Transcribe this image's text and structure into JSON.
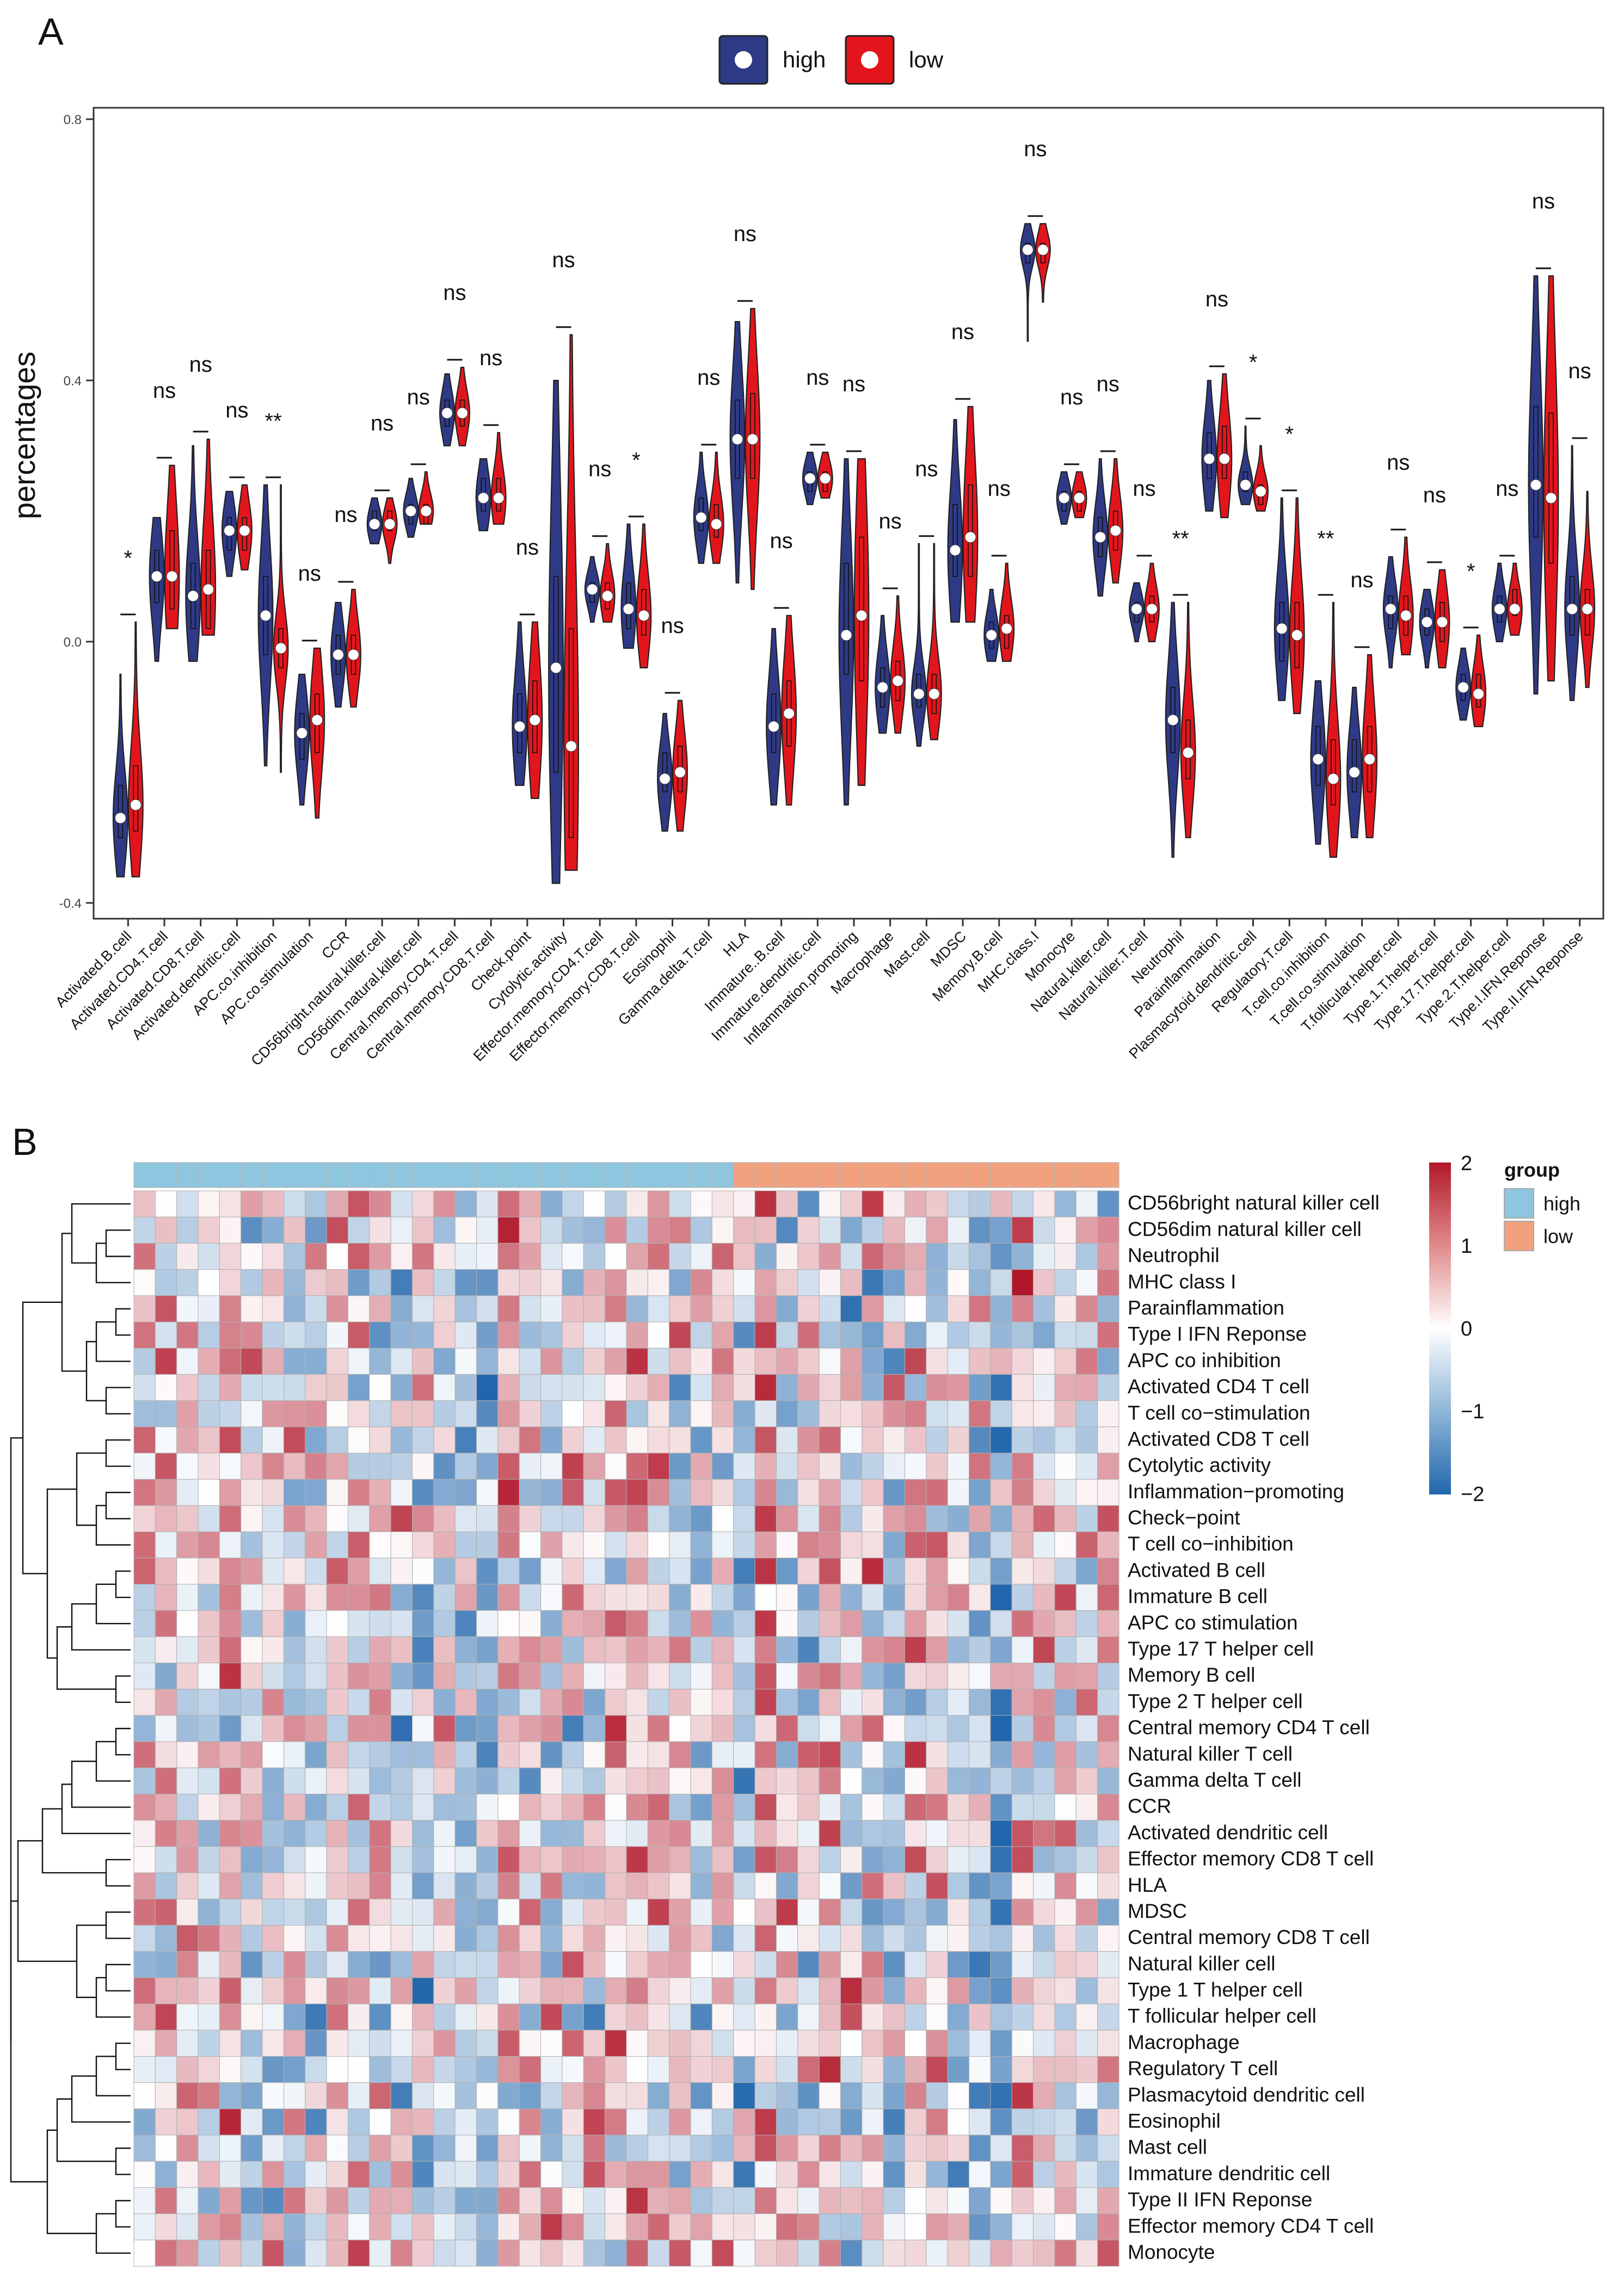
{
  "panel_a": {
    "label": "A",
    "legend": [
      {
        "name": "high",
        "color": "#2f3a86"
      },
      {
        "name": "low",
        "color": "#e3151c"
      }
    ],
    "ylabel": "percentages",
    "ylim": [
      -0.42,
      0.84
    ],
    "yticks": [
      -0.4,
      0.0,
      0.4,
      0.8
    ],
    "ytick_labels": [
      "-0.4",
      "0.0",
      "0.4",
      "0.8"
    ]
  },
  "panel_b": {
    "label": "B",
    "color_scale": {
      "min": -2,
      "max": 2,
      "labels": [
        "2",
        "1",
        "0",
        "−1",
        "−2"
      ]
    },
    "legend_title": "group",
    "groups": [
      {
        "name": "high",
        "color": "#8ec6df",
        "columns": 28
      },
      {
        "name": "low",
        "color": "#f2a17e",
        "columns": 18
      }
    ],
    "rows": [
      "CD56bright natural killer cell",
      "CD56dim natural killer cell",
      "Neutrophil",
      "MHC class I",
      "Parainflammation",
      "Type I IFN Reponse",
      "APC co inhibition",
      "Activated CD4 T cell",
      "T cell co−stimulation",
      "Activated CD8 T cell",
      "Cytolytic activity",
      "Inflammation−promoting",
      "Check−point",
      "T cell co−inhibition",
      "Activated B cell",
      "Immature  B cell",
      "APC co stimulation",
      "Type 17 T helper cell",
      "Memory B cell",
      "Type 2 T helper cell",
      "Central memory CD4 T cell",
      "Natural killer T cell",
      "Gamma delta T cell",
      "CCR",
      "Activated dendritic cell",
      "Effector memory CD8 T cell",
      "HLA",
      "MDSC",
      "Central memory CD8 T cell",
      "Natural killer cell",
      "Type 1 T helper cell",
      "T follicular helper cell",
      "Macrophage",
      "Regulatory T cell",
      "Plasmacytoid dendritic cell",
      "Eosinophil",
      "Mast cell",
      "Immature dendritic cell",
      "Type II IFN Reponse",
      "Effector memory CD4 T cell",
      "Monocyte"
    ]
  },
  "chart_data": [
    {
      "type": "violin",
      "title": "",
      "xlabel": "",
      "ylabel": "percentages",
      "ylim": [
        -0.42,
        0.84
      ],
      "series": [
        "high",
        "low"
      ],
      "categories": [
        {
          "name": "Activated.B.cell",
          "sig": "*",
          "high": {
            "median": -0.27,
            "min": -0.36,
            "max": -0.05,
            "q1": -0.3,
            "q3": -0.22
          },
          "low": {
            "median": -0.25,
            "min": -0.36,
            "max": 0.03,
            "q1": -0.29,
            "q3": -0.19
          }
        },
        {
          "name": "Activated.CD4.T.cell",
          "sig": "ns",
          "high": {
            "median": 0.1,
            "min": -0.03,
            "max": 0.19,
            "q1": 0.06,
            "q3": 0.14
          },
          "low": {
            "median": 0.1,
            "min": 0.02,
            "max": 0.27,
            "q1": 0.05,
            "q3": 0.17
          }
        },
        {
          "name": "Activated.CD8.T.cell",
          "sig": "ns",
          "high": {
            "median": 0.07,
            "min": -0.03,
            "max": 0.3,
            "q1": 0.02,
            "q3": 0.12
          },
          "low": {
            "median": 0.08,
            "min": 0.01,
            "max": 0.31,
            "q1": 0.02,
            "q3": 0.14
          }
        },
        {
          "name": "Activated.dendritic.cell",
          "sig": "ns",
          "high": {
            "median": 0.17,
            "min": 0.1,
            "max": 0.23,
            "q1": 0.14,
            "q3": 0.19
          },
          "low": {
            "median": 0.17,
            "min": 0.11,
            "max": 0.24,
            "q1": 0.14,
            "q3": 0.19
          }
        },
        {
          "name": "APC.co.inhibition",
          "sig": "**",
          "high": {
            "median": 0.04,
            "min": -0.19,
            "max": 0.24,
            "q1": -0.02,
            "q3": 0.1
          },
          "low": {
            "median": -0.01,
            "min": -0.2,
            "max": 0.24,
            "q1": -0.04,
            "q3": 0.02
          }
        },
        {
          "name": "APC.co.stimulation",
          "sig": "ns",
          "high": {
            "median": -0.14,
            "min": -0.25,
            "max": -0.05,
            "q1": -0.18,
            "q3": -0.11
          },
          "low": {
            "median": -0.12,
            "min": -0.27,
            "max": -0.01,
            "q1": -0.17,
            "q3": -0.08
          }
        },
        {
          "name": "CCR",
          "sig": "ns",
          "high": {
            "median": -0.02,
            "min": -0.1,
            "max": 0.06,
            "q1": -0.05,
            "q3": 0.01
          },
          "low": {
            "median": -0.02,
            "min": -0.1,
            "max": 0.08,
            "q1": -0.05,
            "q3": 0.01
          }
        },
        {
          "name": "CD56bright.natural.killer.cell",
          "sig": "ns",
          "high": {
            "median": 0.18,
            "min": 0.15,
            "max": 0.22,
            "q1": 0.17,
            "q3": 0.2
          },
          "low": {
            "median": 0.18,
            "min": 0.12,
            "max": 0.22,
            "q1": 0.17,
            "q3": 0.2
          }
        },
        {
          "name": "CD56dim.natural.killer.cell",
          "sig": "ns",
          "high": {
            "median": 0.2,
            "min": 0.16,
            "max": 0.25,
            "q1": 0.18,
            "q3": 0.21
          },
          "low": {
            "median": 0.2,
            "min": 0.18,
            "max": 0.26,
            "q1": 0.18,
            "q3": 0.21
          }
        },
        {
          "name": "Central.memory.CD4.T.cell",
          "sig": "ns",
          "high": {
            "median": 0.35,
            "min": 0.3,
            "max": 0.41,
            "q1": 0.33,
            "q3": 0.37
          },
          "low": {
            "median": 0.35,
            "min": 0.3,
            "max": 0.42,
            "q1": 0.33,
            "q3": 0.37
          }
        },
        {
          "name": "Central.memory.CD8.T.cell",
          "sig": "ns",
          "high": {
            "median": 0.22,
            "min": 0.17,
            "max": 0.28,
            "q1": 0.2,
            "q3": 0.25
          },
          "low": {
            "median": 0.22,
            "min": 0.18,
            "max": 0.32,
            "q1": 0.2,
            "q3": 0.25
          }
        },
        {
          "name": "Check.point",
          "sig": "ns",
          "high": {
            "median": -0.13,
            "min": -0.22,
            "max": 0.03,
            "q1": -0.17,
            "q3": -0.08
          },
          "low": {
            "median": -0.12,
            "min": -0.24,
            "max": 0.03,
            "q1": -0.17,
            "q3": -0.06
          }
        },
        {
          "name": "Cytolytic.activity",
          "sig": "ns",
          "high": {
            "median": -0.04,
            "min": -0.37,
            "max": 0.4,
            "q1": -0.2,
            "q3": 0.1
          },
          "low": {
            "median": -0.16,
            "min": -0.35,
            "max": 0.47,
            "q1": -0.3,
            "q3": 0.02
          }
        },
        {
          "name": "Effector.memory.CD4.T.cell",
          "sig": "ns",
          "high": {
            "median": 0.08,
            "min": 0.03,
            "max": 0.13,
            "q1": 0.06,
            "q3": 0.09
          },
          "low": {
            "median": 0.07,
            "min": 0.03,
            "max": 0.15,
            "q1": 0.05,
            "q3": 0.09
          }
        },
        {
          "name": "Effector.memory.CD8.T.cell",
          "sig": "*",
          "high": {
            "median": 0.05,
            "min": -0.01,
            "max": 0.18,
            "q1": 0.02,
            "q3": 0.09
          },
          "low": {
            "median": 0.04,
            "min": -0.04,
            "max": 0.18,
            "q1": 0.01,
            "q3": 0.08
          }
        },
        {
          "name": "Eosinophil",
          "sig": "ns",
          "high": {
            "median": -0.21,
            "min": -0.29,
            "max": -0.11,
            "q1": -0.23,
            "q3": -0.17
          },
          "low": {
            "median": -0.2,
            "min": -0.29,
            "max": -0.09,
            "q1": -0.23,
            "q3": -0.16
          }
        },
        {
          "name": "Gamma.delta.T.cell",
          "sig": "ns",
          "high": {
            "median": 0.19,
            "min": 0.12,
            "max": 0.29,
            "q1": 0.17,
            "q3": 0.22
          },
          "low": {
            "median": 0.18,
            "min": 0.12,
            "max": 0.29,
            "q1": 0.16,
            "q3": 0.21
          }
        },
        {
          "name": "HLA",
          "sig": "ns",
          "high": {
            "median": 0.31,
            "min": 0.09,
            "max": 0.49,
            "q1": 0.25,
            "q3": 0.37
          },
          "low": {
            "median": 0.31,
            "min": 0.08,
            "max": 0.51,
            "q1": 0.25,
            "q3": 0.38
          }
        },
        {
          "name": "Immature..B.cell",
          "sig": "ns",
          "high": {
            "median": -0.13,
            "min": -0.25,
            "max": 0.02,
            "q1": -0.17,
            "q3": -0.08
          },
          "low": {
            "median": -0.11,
            "min": -0.25,
            "max": 0.04,
            "q1": -0.16,
            "q3": -0.06
          }
        },
        {
          "name": "Immature.dendritic.cell",
          "sig": "ns",
          "high": {
            "median": 0.25,
            "min": 0.21,
            "max": 0.29,
            "q1": 0.23,
            "q3": 0.26
          },
          "low": {
            "median": 0.25,
            "min": 0.22,
            "max": 0.29,
            "q1": 0.23,
            "q3": 0.26
          }
        },
        {
          "name": "Inflammation.promoting",
          "sig": "ns",
          "high": {
            "median": 0.01,
            "min": -0.25,
            "max": 0.28,
            "q1": -0.05,
            "q3": 0.12
          },
          "low": {
            "median": 0.04,
            "min": -0.22,
            "max": 0.28,
            "q1": -0.06,
            "q3": 0.16
          }
        },
        {
          "name": "Macrophage",
          "sig": "ns",
          "high": {
            "median": -0.07,
            "min": -0.14,
            "max": 0.04,
            "q1": -0.1,
            "q3": -0.04
          },
          "low": {
            "median": -0.06,
            "min": -0.14,
            "max": 0.07,
            "q1": -0.09,
            "q3": -0.03
          }
        },
        {
          "name": "Mast.cell",
          "sig": "ns",
          "high": {
            "median": -0.08,
            "min": -0.16,
            "max": 0.15,
            "q1": -0.1,
            "q3": -0.05
          },
          "low": {
            "median": -0.08,
            "min": -0.15,
            "max": 0.15,
            "q1": -0.11,
            "q3": -0.05
          }
        },
        {
          "name": "MDSC",
          "sig": "ns",
          "high": {
            "median": 0.14,
            "min": 0.03,
            "max": 0.34,
            "q1": 0.1,
            "q3": 0.21
          },
          "low": {
            "median": 0.16,
            "min": 0.03,
            "max": 0.36,
            "q1": 0.1,
            "q3": 0.24
          }
        },
        {
          "name": "Memory.B.cell",
          "sig": "ns",
          "high": {
            "median": 0.01,
            "min": -0.03,
            "max": 0.08,
            "q1": -0.01,
            "q3": 0.03
          },
          "low": {
            "median": 0.02,
            "min": -0.03,
            "max": 0.12,
            "q1": -0.01,
            "q3": 0.04
          }
        },
        {
          "name": "MHC.class.I",
          "sig": "ns",
          "high": {
            "median": 0.6,
            "min": 0.46,
            "max": 0.64,
            "q1": 0.58,
            "q3": 0.61
          },
          "low": {
            "median": 0.6,
            "min": 0.52,
            "max": 0.64,
            "q1": 0.58,
            "q3": 0.61
          }
        },
        {
          "name": "Monocyte",
          "sig": "ns",
          "high": {
            "median": 0.22,
            "min": 0.18,
            "max": 0.26,
            "q1": 0.2,
            "q3": 0.23
          },
          "low": {
            "median": 0.22,
            "min": 0.19,
            "max": 0.26,
            "q1": 0.2,
            "q3": 0.23
          }
        },
        {
          "name": "Natural.killer.cell",
          "sig": "ns",
          "high": {
            "median": 0.16,
            "min": 0.07,
            "max": 0.28,
            "q1": 0.13,
            "q3": 0.19
          },
          "low": {
            "median": 0.17,
            "min": 0.09,
            "max": 0.28,
            "q1": 0.14,
            "q3": 0.2
          }
        },
        {
          "name": "Natural.killer.T.cell",
          "sig": "ns",
          "high": {
            "median": 0.05,
            "min": 0.0,
            "max": 0.09,
            "q1": 0.03,
            "q3": 0.06
          },
          "low": {
            "median": 0.05,
            "min": 0.0,
            "max": 0.12,
            "q1": 0.03,
            "q3": 0.07
          }
        },
        {
          "name": "Neutrophil",
          "sig": "**",
          "high": {
            "median": -0.12,
            "min": -0.33,
            "max": 0.06,
            "q1": -0.17,
            "q3": -0.07
          },
          "low": {
            "median": -0.17,
            "min": -0.3,
            "max": 0.06,
            "q1": -0.21,
            "q3": -0.12
          }
        },
        {
          "name": "Parainflammation",
          "sig": "ns",
          "high": {
            "median": 0.28,
            "min": 0.2,
            "max": 0.4,
            "q1": 0.25,
            "q3": 0.32
          },
          "low": {
            "median": 0.28,
            "min": 0.19,
            "max": 0.41,
            "q1": 0.25,
            "q3": 0.33
          }
        },
        {
          "name": "Plasmacytoid.dendritic.cell",
          "sig": "*",
          "high": {
            "median": 0.24,
            "min": 0.21,
            "max": 0.33,
            "q1": 0.23,
            "q3": 0.26
          },
          "low": {
            "median": 0.23,
            "min": 0.2,
            "max": 0.3,
            "q1": 0.21,
            "q3": 0.24
          }
        },
        {
          "name": "Regulatory.T.cell",
          "sig": "*",
          "high": {
            "median": 0.02,
            "min": -0.09,
            "max": 0.22,
            "q1": -0.03,
            "q3": 0.06
          },
          "low": {
            "median": 0.01,
            "min": -0.11,
            "max": 0.22,
            "q1": -0.04,
            "q3": 0.06
          }
        },
        {
          "name": "T.cell.co.inhibition",
          "sig": "**",
          "high": {
            "median": -0.18,
            "min": -0.31,
            "max": -0.06,
            "q1": -0.22,
            "q3": -0.13
          },
          "low": {
            "median": -0.21,
            "min": -0.33,
            "max": 0.06,
            "q1": -0.25,
            "q3": -0.15
          }
        },
        {
          "name": "T.cell.co.stimulation",
          "sig": "ns",
          "high": {
            "median": -0.2,
            "min": -0.3,
            "max": -0.07,
            "q1": -0.23,
            "q3": -0.15
          },
          "low": {
            "median": -0.18,
            "min": -0.3,
            "max": -0.02,
            "q1": -0.23,
            "q3": -0.13
          }
        },
        {
          "name": "T.follicular.helper.cell",
          "sig": "ns",
          "high": {
            "median": 0.05,
            "min": -0.04,
            "max": 0.13,
            "q1": 0.02,
            "q3": 0.07
          },
          "low": {
            "median": 0.04,
            "min": -0.02,
            "max": 0.16,
            "q1": 0.01,
            "q3": 0.07
          }
        },
        {
          "name": "Type.1.T.helper.cell",
          "sig": "ns",
          "high": {
            "median": 0.03,
            "min": -0.04,
            "max": 0.08,
            "q1": 0.01,
            "q3": 0.05
          },
          "low": {
            "median": 0.03,
            "min": -0.04,
            "max": 0.11,
            "q1": 0.0,
            "q3": 0.06
          }
        },
        {
          "name": "Type.17.T.helper.cell",
          "sig": "*",
          "high": {
            "median": -0.07,
            "min": -0.12,
            "max": -0.01,
            "q1": -0.09,
            "q3": -0.05
          },
          "low": {
            "median": -0.08,
            "min": -0.13,
            "max": 0.01,
            "q1": -0.1,
            "q3": -0.05
          }
        },
        {
          "name": "Type.2.T.helper.cell",
          "sig": "ns",
          "high": {
            "median": 0.05,
            "min": 0.0,
            "max": 0.12,
            "q1": 0.03,
            "q3": 0.07
          },
          "low": {
            "median": 0.05,
            "min": 0.01,
            "max": 0.12,
            "q1": 0.04,
            "q3": 0.08
          }
        },
        {
          "name": "Type.I.IFN.Reponse",
          "sig": "ns",
          "high": {
            "median": 0.24,
            "min": -0.08,
            "max": 0.56,
            "q1": 0.16,
            "q3": 0.36
          },
          "low": {
            "median": 0.22,
            "min": -0.06,
            "max": 0.56,
            "q1": 0.12,
            "q3": 0.35
          }
        },
        {
          "name": "Type.II.IFN.Reponse",
          "sig": "ns",
          "high": {
            "median": 0.05,
            "min": -0.09,
            "max": 0.3,
            "q1": 0.01,
            "q3": 0.1
          },
          "low": {
            "median": 0.05,
            "min": -0.07,
            "max": 0.23,
            "q1": 0.01,
            "q3": 0.08
          }
        }
      ]
    },
    {
      "type": "heatmap",
      "title": "",
      "value_range": [
        -2,
        2
      ],
      "columns_per_group": {
        "high": 28,
        "low": 18
      },
      "values_note": "z-scored immune signature scores per sample; cell values estimated from color"
    }
  ]
}
